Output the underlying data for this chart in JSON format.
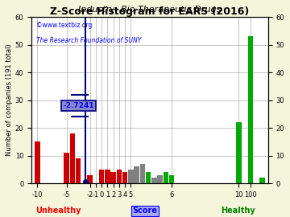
{
  "title": "Z-Score Histogram for EARS (2016)",
  "subtitle": "Industry: Bio Therapeutic Drugs",
  "watermark": "©www.textbiz.org",
  "watermark2": "The Research Foundation of SUNY",
  "xlabel_center": "Score",
  "xlabel_left": "Unhealthy",
  "xlabel_right": "Healthy",
  "ylabel": "Number of companies (191 total)",
  "score_label": "-2.7241",
  "score_value": -2.7241,
  "bars": [
    {
      "bin": -10.5,
      "height": 15,
      "color": "#cc0000"
    },
    {
      "bin": -5.5,
      "height": 11,
      "color": "#cc0000"
    },
    {
      "bin": -4.5,
      "height": 18,
      "color": "#cc0000"
    },
    {
      "bin": -3.5,
      "height": 9,
      "color": "#cc0000"
    },
    {
      "bin": -2.5,
      "height": 0,
      "color": "#cc0000"
    },
    {
      "bin": -1.5,
      "height": 3,
      "color": "#cc0000"
    },
    {
      "bin": -0.5,
      "height": 0,
      "color": "#cc0000"
    },
    {
      "bin": 0.5,
      "height": 5,
      "color": "#cc0000"
    },
    {
      "bin": 1.5,
      "height": 5,
      "color": "#cc0000"
    },
    {
      "bin": 2.5,
      "height": 4,
      "color": "#cc0000"
    },
    {
      "bin": 3.5,
      "height": 5,
      "color": "#cc0000"
    },
    {
      "bin": 4.5,
      "height": 4,
      "color": "#cc0000"
    },
    {
      "bin": 5.5,
      "height": 5,
      "color": "#808080"
    },
    {
      "bin": 6.5,
      "height": 6,
      "color": "#808080"
    },
    {
      "bin": 7.5,
      "height": 7,
      "color": "#808080"
    },
    {
      "bin": 8.5,
      "height": 4,
      "color": "#00aa00"
    },
    {
      "bin": 9.5,
      "height": 2,
      "color": "#808080"
    },
    {
      "bin": 10.5,
      "height": 3,
      "color": "#808080"
    },
    {
      "bin": 11.5,
      "height": 4,
      "color": "#00aa00"
    },
    {
      "bin": 12.5,
      "height": 3,
      "color": "#00aa00"
    },
    {
      "bin": 24,
      "height": 22,
      "color": "#00aa00"
    },
    {
      "bin": 26,
      "height": 53,
      "color": "#00aa00"
    },
    {
      "bin": 28,
      "height": 2,
      "color": "#00aa00"
    }
  ],
  "xtick_positions": [
    -10,
    -5,
    -2,
    -1,
    0,
    1,
    2,
    3,
    4,
    5,
    6,
    10,
    100
  ],
  "xtick_labels": [
    "-10",
    "-5",
    "-2",
    "-1",
    "0",
    "1",
    "2",
    "3",
    "4",
    "5",
    "6",
    "10",
    "100"
  ],
  "ylim": [
    0,
    60
  ],
  "yticks": [
    0,
    10,
    20,
    30,
    40,
    50,
    60
  ],
  "bg_color": "#f5f5dc",
  "plot_bg": "#ffffff",
  "grid_color": "#999999",
  "title_fontsize": 9,
  "subtitle_fontsize": 8,
  "tick_fontsize": 6,
  "label_fontsize": 6
}
